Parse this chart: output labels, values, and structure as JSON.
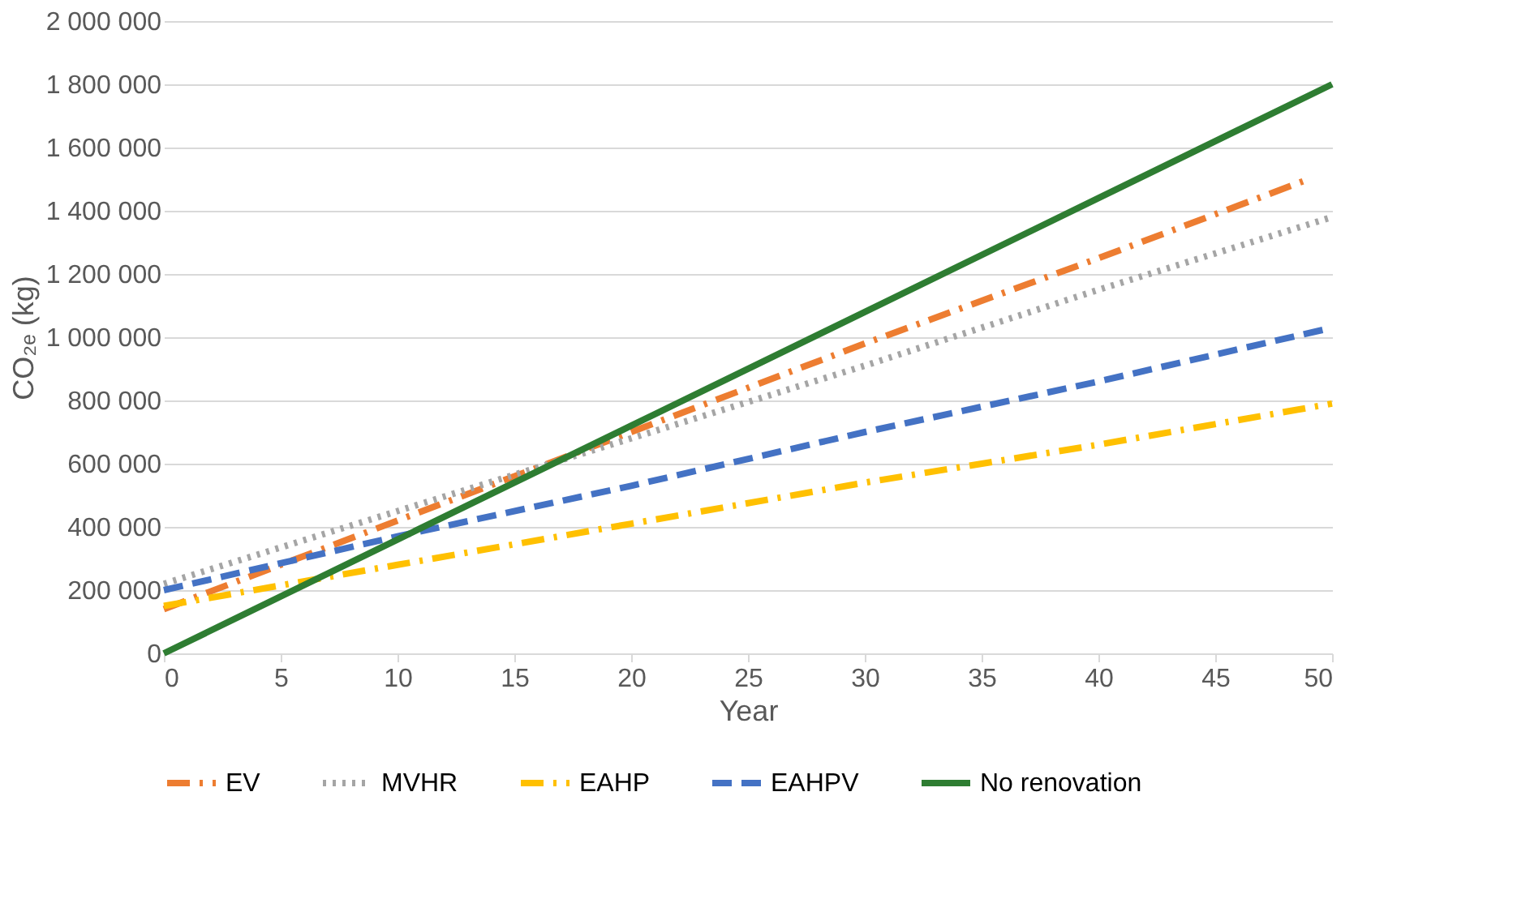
{
  "chart_data": {
    "type": "line",
    "ylabel": "CO₂ₑ (kg)",
    "xlabel": "Year",
    "xlim": [
      0,
      50
    ],
    "xticks": [
      0,
      5,
      10,
      15,
      20,
      25,
      30,
      35,
      40,
      45,
      50
    ],
    "ylim": [
      0,
      2000000
    ],
    "yticks": [
      0,
      {
        "value": 200000,
        "label": "200 000"
      },
      {
        "value": 400000,
        "label": "400 000"
      },
      {
        "value": 600000,
        "label": "600 000"
      },
      {
        "value": 800000,
        "label": "800 000"
      },
      {
        "value": 1000000,
        "label": "1 000 000"
      },
      {
        "value": 1200000,
        "label": "1 200 000"
      },
      {
        "value": 1400000,
        "label": "1 400 000"
      },
      {
        "value": 1600000,
        "label": "1 600 000"
      },
      {
        "value": 1800000,
        "label": "1 800 000"
      },
      {
        "value": 2000000,
        "label": "2 000 000"
      }
    ],
    "grid": "y",
    "legend": "bottom",
    "marker": "none",
    "series": [
      {
        "name": "EV",
        "color": "#ed7d31",
        "line_style": "dashdot",
        "x": [
          0,
          10,
          20,
          30,
          40,
          49
        ],
        "values": [
          140000,
          420000,
          700000,
          980000,
          1250000,
          1500000
        ]
      },
      {
        "name": "MVHR",
        "color": "#a5a5a5",
        "line_style": "dotted",
        "x": [
          0,
          10,
          20,
          30,
          40,
          50
        ],
        "values": [
          220000,
          450000,
          680000,
          910000,
          1150000,
          1380000
        ]
      },
      {
        "name": "EAHP",
        "color": "#ffc000",
        "line_style": "dashdot",
        "x": [
          0,
          10,
          20,
          30,
          40,
          50
        ],
        "values": [
          150000,
          280000,
          410000,
          540000,
          660000,
          790000
        ]
      },
      {
        "name": "EAHPV",
        "color": "#4472c4",
        "line_style": "dashed",
        "x": [
          0,
          10,
          20,
          30,
          40,
          50
        ],
        "values": [
          200000,
          370000,
          530000,
          700000,
          860000,
          1030000
        ]
      },
      {
        "name": "No renovation",
        "color": "#2e7d32",
        "line_style": "solid",
        "x": [
          0,
          10,
          20,
          30,
          40,
          50
        ],
        "values": [
          0,
          360000,
          720000,
          1080000,
          1440000,
          1800000
        ]
      }
    ]
  }
}
